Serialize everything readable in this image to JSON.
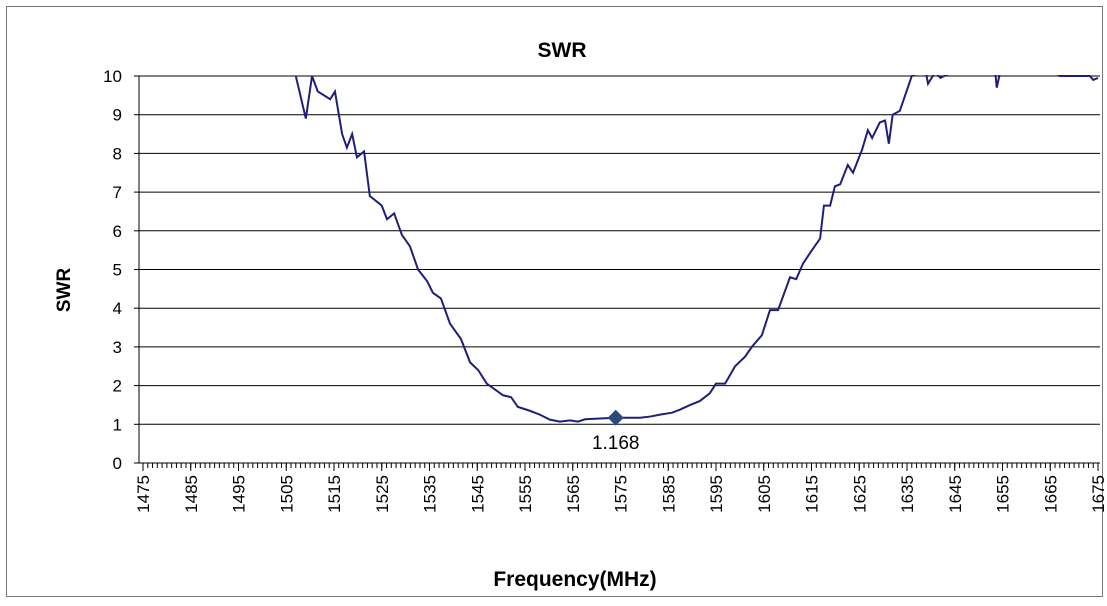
{
  "chart_data": {
    "type": "line",
    "title": "SWR",
    "xlabel": "Frequency(MHz)",
    "ylabel": "SWR",
    "x": [
      1507,
      1509.1,
      1510.4,
      1511.6,
      1514.2,
      1515.2,
      1516.7,
      1517.7,
      1518.8,
      1519.8,
      1521.3,
      1522.5,
      1525,
      1526.1,
      1527.6,
      1529.2,
      1530.9,
      1532.6,
      1534.5,
      1535.7,
      1537.4,
      1539.3,
      1541.6,
      1543.5,
      1545.2,
      1547,
      1548.7,
      1550.4,
      1552.1,
      1553.5,
      1556,
      1558.1,
      1560.2,
      1562.3,
      1564.4,
      1566.1,
      1567.6,
      1570.7,
      1574,
      1577,
      1579.1,
      1581.2,
      1583.3,
      1585.8,
      1587.5,
      1589.6,
      1591.6,
      1593.7,
      1595,
      1596.9,
      1599,
      1601.1,
      1602.5,
      1604.6,
      1606.3,
      1608,
      1610.5,
      1611.8,
      1613.2,
      1615.1,
      1616.8,
      1617.6,
      1618.9,
      1619.9,
      1621,
      1622.6,
      1623.7,
      1625.6,
      1626.8,
      1627.7,
      1629.3,
      1630.4,
      1631.2,
      1632,
      1633.5,
      1636,
      1638.8,
      1639.4,
      1640.9,
      1642,
      1646,
      1653.4,
      1653.8,
      1654.5,
      1665,
      1667,
      1673.3,
      1674,
      1675
    ],
    "series": [
      {
        "name": "SWR",
        "color": "#1f1f7a",
        "values": [
          10,
          8.9,
          10.0,
          9.6,
          9.4,
          9.6,
          8.5,
          8.15,
          8.5,
          7.9,
          8.05,
          6.9,
          6.65,
          6.3,
          6.45,
          5.9,
          5.6,
          5.0,
          4.7,
          4.4,
          4.25,
          3.6,
          3.2,
          2.6,
          2.4,
          2.05,
          1.9,
          1.75,
          1.7,
          1.45,
          1.35,
          1.25,
          1.12,
          1.07,
          1.1,
          1.07,
          1.13,
          1.15,
          1.168,
          1.17,
          1.17,
          1.2,
          1.25,
          1.3,
          1.38,
          1.5,
          1.6,
          1.8,
          2.05,
          2.05,
          2.5,
          2.75,
          3.0,
          3.3,
          3.95,
          3.95,
          4.8,
          4.75,
          5.15,
          5.5,
          5.8,
          6.65,
          6.65,
          7.15,
          7.2,
          7.7,
          7.5,
          8.1,
          8.6,
          8.4,
          8.8,
          8.85,
          8.25,
          9.0,
          9.1,
          10.0,
          10.2,
          9.8,
          10.1,
          9.95,
          10.2,
          10.2,
          9.7,
          10.1,
          10.2,
          10.0,
          10.0,
          9.9,
          9.95
        ]
      }
    ],
    "marker": {
      "x": 1574,
      "value": 1.168,
      "color": "#2a4a7a"
    },
    "xlim": [
      1475,
      1675
    ],
    "xticks": [
      1475,
      1485,
      1495,
      1505,
      1515,
      1525,
      1535,
      1545,
      1555,
      1565,
      1575,
      1585,
      1595,
      1605,
      1615,
      1625,
      1635,
      1645,
      1655,
      1665,
      1675
    ],
    "ylim": [
      0,
      10
    ],
    "yticks": [
      0,
      1,
      2,
      3,
      4,
      5,
      6,
      7,
      8,
      9,
      10
    ],
    "grid": true
  }
}
